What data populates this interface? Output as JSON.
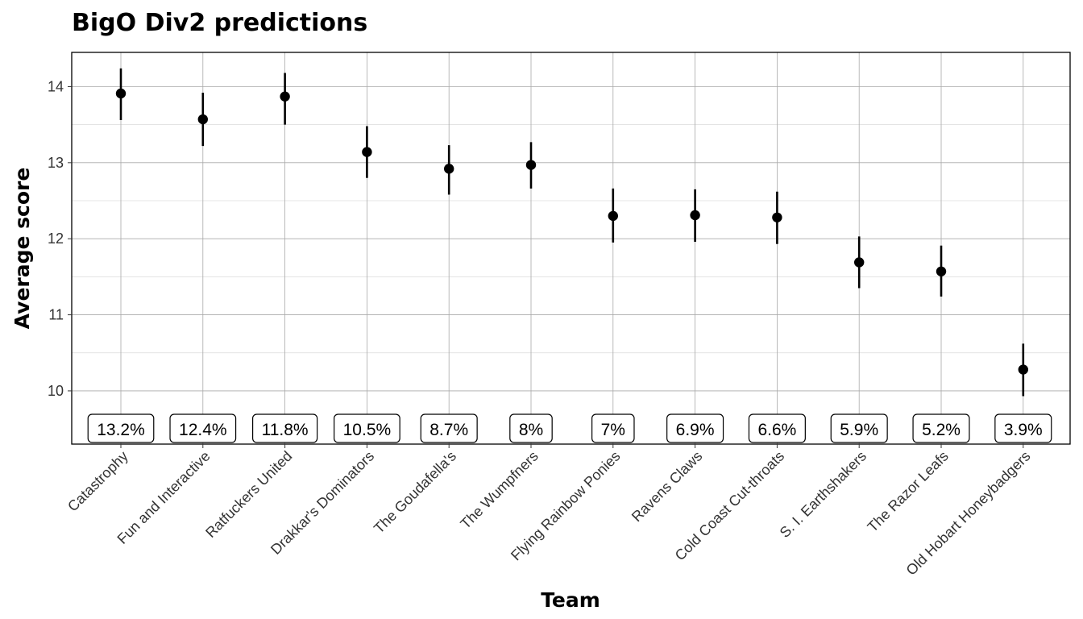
{
  "chart_data": {
    "type": "scatter",
    "title": "BigO Div2 predictions",
    "xlabel": "Team",
    "ylabel": "Average score",
    "ylim": [
      9.3,
      14.45
    ],
    "yticks": [
      10,
      11,
      12,
      13,
      14
    ],
    "grid": true,
    "categories": [
      "Catastrophy",
      "Fun and Interactive",
      "Ratfuckers United",
      "Drakkar's Dominators",
      "The Goudafella's",
      "The Wumpfners",
      "Flying Rainbow Ponies",
      "Ravens Claws",
      "Cold Coast Cut-throats",
      "S. I. Earthshakers",
      "The Razor Leafs",
      "Old Hobart Honeybadgers"
    ],
    "series": [
      {
        "values": [
          13.91,
          13.57,
          13.87,
          13.14,
          12.92,
          12.97,
          12.3,
          12.31,
          12.28,
          11.69,
          11.57,
          10.28
        ],
        "lower": [
          13.56,
          13.22,
          13.5,
          12.8,
          12.58,
          12.66,
          11.95,
          11.96,
          11.93,
          11.35,
          11.24,
          9.93
        ],
        "upper": [
          14.24,
          13.92,
          14.18,
          13.48,
          13.23,
          13.27,
          12.66,
          12.65,
          12.62,
          12.03,
          11.91,
          10.62
        ]
      }
    ],
    "labels": [
      "13.2%",
      "12.4%",
      "11.8%",
      "10.5%",
      "8.7%",
      "8%",
      "7%",
      "6.9%",
      "6.6%",
      "5.9%",
      "5.2%",
      "3.9%"
    ]
  }
}
